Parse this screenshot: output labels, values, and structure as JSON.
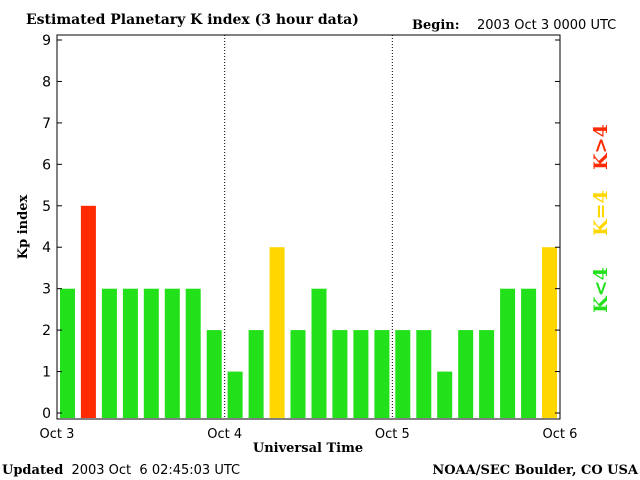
{
  "chart_data": {
    "type": "bar",
    "title": "Estimated Planetary K index (3 hour data)",
    "begin_label": "Begin:",
    "begin_value": "2003 Oct 3 0000 UTC",
    "xlabel": "Universal Time",
    "ylabel": "Kp index",
    "ylim": [
      0,
      9
    ],
    "yticks": [
      "0",
      "1",
      "2",
      "3",
      "4",
      "5",
      "6",
      "7",
      "8",
      "9"
    ],
    "xticks": [
      "Oct 3",
      "Oct 4",
      "Oct 5",
      "Oct 6"
    ],
    "values": [
      3,
      5,
      3,
      3,
      3,
      3,
      3,
      2,
      1,
      2,
      4,
      2,
      3,
      2,
      2,
      2,
      2,
      2,
      1,
      2,
      2,
      3,
      3,
      4
    ],
    "legend": [
      {
        "label": "K<4",
        "color": "#22e01a"
      },
      {
        "label": "K=4",
        "color": "#ffd700"
      },
      {
        "label": "K>4",
        "color": "#ff2a00"
      }
    ],
    "colors": {
      "low": "#22e01a",
      "equal": "#ffd700",
      "high": "#ff2a00"
    }
  },
  "footer": {
    "updated_label": "Updated",
    "updated_value": "2003 Oct  6 02:45:03 UTC",
    "source": "NOAA/SEC Boulder, CO USA"
  }
}
